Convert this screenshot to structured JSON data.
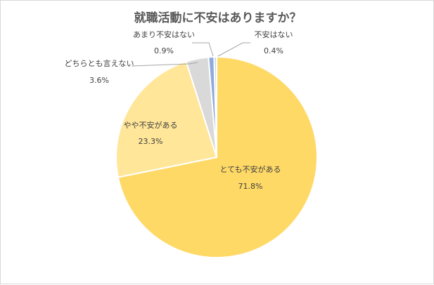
{
  "chart_data": {
    "type": "pie",
    "title": "就職活動に不安はありますか？",
    "slices": [
      {
        "label": "とても不安がある",
        "value": 71.8,
        "display": "71.8%",
        "color": "#ffd966"
      },
      {
        "label": "やや不安がある",
        "value": 23.3,
        "display": "23.3%",
        "color": "#ffe699"
      },
      {
        "label": "どちらとも言えない",
        "value": 3.6,
        "display": "3.6%",
        "color": "#d9d9d9"
      },
      {
        "label": "あまり不安はない",
        "value": 0.9,
        "display": "0.9%",
        "color": "#8faadc"
      },
      {
        "label": "不安はない",
        "value": 0.4,
        "display": "0.4%",
        "color": "#bdd7ee"
      }
    ],
    "start": "12 o'clock",
    "direction": "clockwise",
    "legend": "none",
    "data_labels": "category and percent"
  }
}
